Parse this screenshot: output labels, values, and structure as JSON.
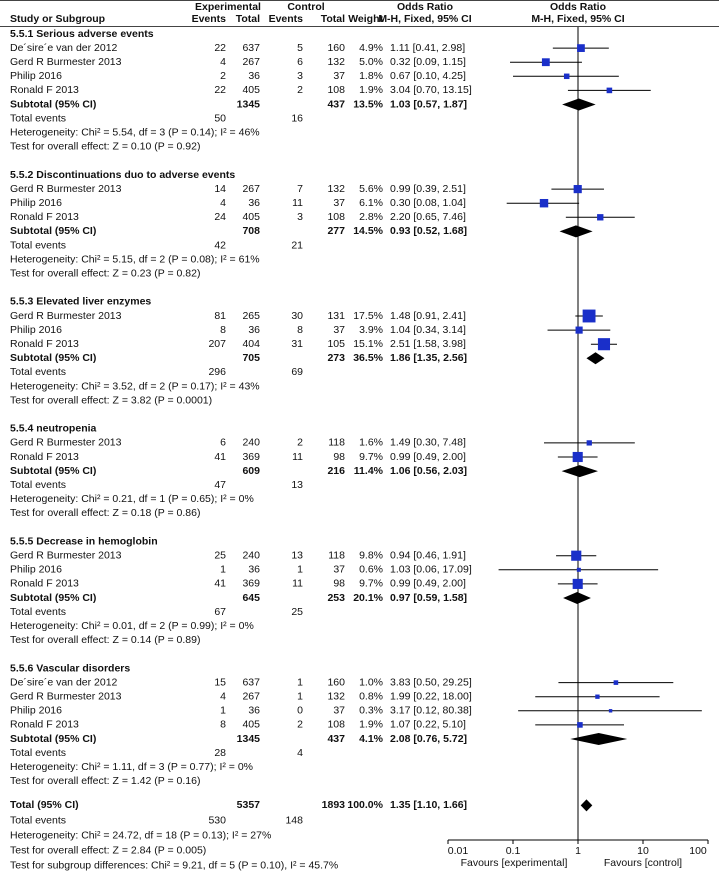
{
  "chart_data": {
    "type": "forest",
    "headers": {
      "experimental": "Experimental",
      "control": "Control",
      "odds_ratio": "Odds Ratio",
      "method": "M-H, Fixed, 95% CI",
      "study": "Study or Subgroup",
      "events": "Events",
      "total": "Total",
      "weight": "Weight"
    },
    "groups": [
      {
        "title": "5.5.1 Serious adverse events",
        "studies": [
          {
            "name": "De´sire´e van der 2012",
            "e": 22,
            "en": 637,
            "c": 5,
            "cn": 160,
            "w": 4.9,
            "wl": "4.9%",
            "label": "1.11 [0.41, 2.98]",
            "or": 1.11,
            "ci": [
              0.41,
              2.98
            ]
          },
          {
            "name": "Gerd R Burmester 2013",
            "e": 4,
            "en": 267,
            "c": 6,
            "cn": 132,
            "w": 5.0,
            "wl": "5.0%",
            "label": "0.32 [0.09, 1.15]",
            "or": 0.32,
            "ci": [
              0.09,
              1.15
            ]
          },
          {
            "name": "Philip  2016",
            "e": 2,
            "en": 36,
            "c": 3,
            "cn": 37,
            "w": 1.8,
            "wl": "1.8%",
            "label": "0.67 [0.10, 4.25]",
            "or": 0.67,
            "ci": [
              0.1,
              4.25
            ]
          },
          {
            "name": "Ronald F 2013",
            "e": 22,
            "en": 405,
            "c": 2,
            "cn": 108,
            "w": 1.9,
            "wl": "1.9%",
            "label": "3.04 [0.70, 13.15]",
            "or": 3.04,
            "ci": [
              0.7,
              13.15
            ]
          }
        ],
        "subtotal": {
          "name": "Subtotal (95% CI)",
          "en": 1345,
          "cn": 437,
          "w": 13.5,
          "wl": "13.5%",
          "label": "1.03 [0.57, 1.87]",
          "or": 1.03,
          "ci": [
            0.57,
            1.87
          ]
        },
        "events": {
          "name": "Total events",
          "e": 50,
          "c": 16
        },
        "heterogeneity": "Heterogeneity: Chi² = 5.54, df = 3 (P = 0.14); I² = 46%",
        "overall": "Test for overall effect: Z = 0.10 (P = 0.92)"
      },
      {
        "title": "5.5.2 Discontinuations duo to adverse events",
        "studies": [
          {
            "name": "Gerd R Burmester 2013",
            "e": 14,
            "en": 267,
            "c": 7,
            "cn": 132,
            "w": 5.6,
            "wl": "5.6%",
            "label": "0.99 [0.39, 2.51]",
            "or": 0.99,
            "ci": [
              0.39,
              2.51
            ]
          },
          {
            "name": "Philip  2016",
            "e": 4,
            "en": 36,
            "c": 11,
            "cn": 37,
            "w": 6.1,
            "wl": "6.1%",
            "label": "0.30 [0.08, 1.04]",
            "or": 0.3,
            "ci": [
              0.08,
              1.04
            ]
          },
          {
            "name": "Ronald F 2013",
            "e": 24,
            "en": 405,
            "c": 3,
            "cn": 108,
            "w": 2.8,
            "wl": "2.8%",
            "label": "2.20 [0.65, 7.46]",
            "or": 2.2,
            "ci": [
              0.65,
              7.46
            ]
          }
        ],
        "subtotal": {
          "name": "Subtotal (95% CI)",
          "en": 708,
          "cn": 277,
          "w": 14.5,
          "wl": "14.5%",
          "label": "0.93 [0.52, 1.68]",
          "or": 0.93,
          "ci": [
            0.52,
            1.68
          ]
        },
        "events": {
          "name": "Total events",
          "e": 42,
          "c": 21
        },
        "heterogeneity": "Heterogeneity: Chi² = 5.15, df = 2 (P = 0.08); I² = 61%",
        "overall": "Test for overall effect: Z = 0.23 (P = 0.82)"
      },
      {
        "title": "5.5.3 Elevated liver enzymes",
        "studies": [
          {
            "name": "Gerd R Burmester 2013",
            "e": 81,
            "en": 265,
            "c": 30,
            "cn": 131,
            "w": 17.5,
            "wl": "17.5%",
            "label": "1.48 [0.91, 2.41]",
            "or": 1.48,
            "ci": [
              0.91,
              2.41
            ]
          },
          {
            "name": "Philip  2016",
            "e": 8,
            "en": 36,
            "c": 8,
            "cn": 37,
            "w": 3.9,
            "wl": "3.9%",
            "label": "1.04 [0.34, 3.14]",
            "or": 1.04,
            "ci": [
              0.34,
              3.14
            ]
          },
          {
            "name": "Ronald F 2013",
            "e": 207,
            "en": 404,
            "c": 31,
            "cn": 105,
            "w": 15.1,
            "wl": "15.1%",
            "label": "2.51 [1.58, 3.98]",
            "or": 2.51,
            "ci": [
              1.58,
              3.98
            ]
          }
        ],
        "subtotal": {
          "name": "Subtotal (95% CI)",
          "en": 705,
          "cn": 273,
          "w": 36.5,
          "wl": "36.5%",
          "label": "1.86 [1.35, 2.56]",
          "or": 1.86,
          "ci": [
            1.35,
            2.56
          ]
        },
        "events": {
          "name": "Total events",
          "e": 296,
          "c": 69
        },
        "heterogeneity": "Heterogeneity: Chi² = 3.52, df = 2 (P = 0.17); I² = 43%",
        "overall": "Test for overall effect: Z = 3.82 (P = 0.0001)"
      },
      {
        "title": "5.5.4 neutropenia",
        "studies": [
          {
            "name": "Gerd R Burmester 2013",
            "e": 6,
            "en": 240,
            "c": 2,
            "cn": 118,
            "w": 1.6,
            "wl": "1.6%",
            "label": "1.49 [0.30, 7.48]",
            "or": 1.49,
            "ci": [
              0.3,
              7.48
            ]
          },
          {
            "name": "Ronald F 2013",
            "e": 41,
            "en": 369,
            "c": 11,
            "cn": 98,
            "w": 9.7,
            "wl": "9.7%",
            "label": "0.99 [0.49, 2.00]",
            "or": 0.99,
            "ci": [
              0.49,
              2.0
            ]
          }
        ],
        "subtotal": {
          "name": "Subtotal (95% CI)",
          "en": 609,
          "cn": 216,
          "w": 11.4,
          "wl": "11.4%",
          "label": "1.06 [0.56, 2.03]",
          "or": 1.06,
          "ci": [
            0.56,
            2.03
          ]
        },
        "events": {
          "name": "Total events",
          "e": 47,
          "c": 13
        },
        "heterogeneity": "Heterogeneity: Chi² = 0.21, df = 1 (P = 0.65); I² = 0%",
        "overall": "Test for overall effect: Z = 0.18 (P = 0.86)"
      },
      {
        "title": "5.5.5 Decrease in hemoglobin",
        "studies": [
          {
            "name": "Gerd R Burmester 2013",
            "e": 25,
            "en": 240,
            "c": 13,
            "cn": 118,
            "w": 9.8,
            "wl": "9.8%",
            "label": "0.94 [0.46, 1.91]",
            "or": 0.94,
            "ci": [
              0.46,
              1.91
            ]
          },
          {
            "name": "Philip  2016",
            "e": 1,
            "en": 36,
            "c": 1,
            "cn": 37,
            "w": 0.6,
            "wl": "0.6%",
            "label": "1.03 [0.06, 17.09]",
            "or": 1.03,
            "ci": [
              0.06,
              17.09
            ]
          },
          {
            "name": "Ronald F 2013",
            "e": 41,
            "en": 369,
            "c": 11,
            "cn": 98,
            "w": 9.7,
            "wl": "9.7%",
            "label": "0.99 [0.49, 2.00]",
            "or": 0.99,
            "ci": [
              0.49,
              2.0
            ]
          }
        ],
        "subtotal": {
          "name": "Subtotal (95% CI)",
          "en": 645,
          "cn": 253,
          "w": 20.1,
          "wl": "20.1%",
          "label": "0.97 [0.59, 1.58]",
          "or": 0.97,
          "ci": [
            0.59,
            1.58
          ]
        },
        "events": {
          "name": "Total events",
          "e": 67,
          "c": 25
        },
        "heterogeneity": "Heterogeneity: Chi² = 0.01, df = 2 (P = 0.99); I² = 0%",
        "overall": "Test for overall effect: Z = 0.14 (P = 0.89)"
      },
      {
        "title": "5.5.6 Vascular disorders",
        "studies": [
          {
            "name": "De´sire´e van der 2012",
            "e": 15,
            "en": 637,
            "c": 1,
            "cn": 160,
            "w": 1.0,
            "wl": "1.0%",
            "label": "3.83 [0.50, 29.25]",
            "or": 3.83,
            "ci": [
              0.5,
              29.25
            ]
          },
          {
            "name": "Gerd R Burmester 2013",
            "e": 4,
            "en": 267,
            "c": 1,
            "cn": 132,
            "w": 0.8,
            "wl": "0.8%",
            "label": "1.99 [0.22, 18.00]",
            "or": 1.99,
            "ci": [
              0.22,
              18.0
            ]
          },
          {
            "name": "Philip  2016",
            "e": 1,
            "en": 36,
            "c": 0,
            "cn": 37,
            "w": 0.3,
            "wl": "0.3%",
            "label": "3.17 [0.12, 80.38]",
            "or": 3.17,
            "ci": [
              0.12,
              80.38
            ]
          },
          {
            "name": "Ronald F 2013",
            "e": 8,
            "en": 405,
            "c": 2,
            "cn": 108,
            "w": 1.9,
            "wl": "1.9%",
            "label": "1.07 [0.22, 5.10]",
            "or": 1.07,
            "ci": [
              0.22,
              5.1
            ]
          }
        ],
        "subtotal": {
          "name": "Subtotal (95% CI)",
          "en": 1345,
          "cn": 437,
          "w": 4.1,
          "wl": "4.1%",
          "label": "2.08 [0.76, 5.72]",
          "or": 2.08,
          "ci": [
            0.76,
            5.72
          ]
        },
        "events": {
          "name": "Total events",
          "e": 28,
          "c": 4
        },
        "heterogeneity": "Heterogeneity: Chi² = 1.11, df = 3 (P = 0.77); I² = 0%",
        "overall": "Test for overall effect: Z = 1.42 (P = 0.16)"
      }
    ],
    "total": {
      "name": "Total (95% CI)",
      "en": 5357,
      "cn": 1893,
      "w": 100.0,
      "wl": "100.0%",
      "label": "1.35 [1.10, 1.66]",
      "or": 1.35,
      "ci": [
        1.1,
        1.66
      ]
    },
    "total_events": {
      "name": "Total events",
      "e": 530,
      "c": 148
    },
    "heterogeneity": "Heterogeneity: Chi² = 24.72, df = 18 (P = 0.13); I² = 27%",
    "overall": "Test for overall effect: Z = 2.84 (P = 0.005)",
    "subgroup_differences": "Test for subgroup differences: Chi² = 9.21, df = 5 (P = 0.10), I² = 45.7%",
    "log_scale": true,
    "xlim": [
      0.01,
      100
    ],
    "xticks": [
      0.01,
      0.1,
      1,
      10,
      100
    ],
    "xlabel_left": "Favours [experimental]",
    "xlabel_right": "Favours [control]",
    "marker_color": "#1a2fc9",
    "diamond_color": "#000000"
  }
}
